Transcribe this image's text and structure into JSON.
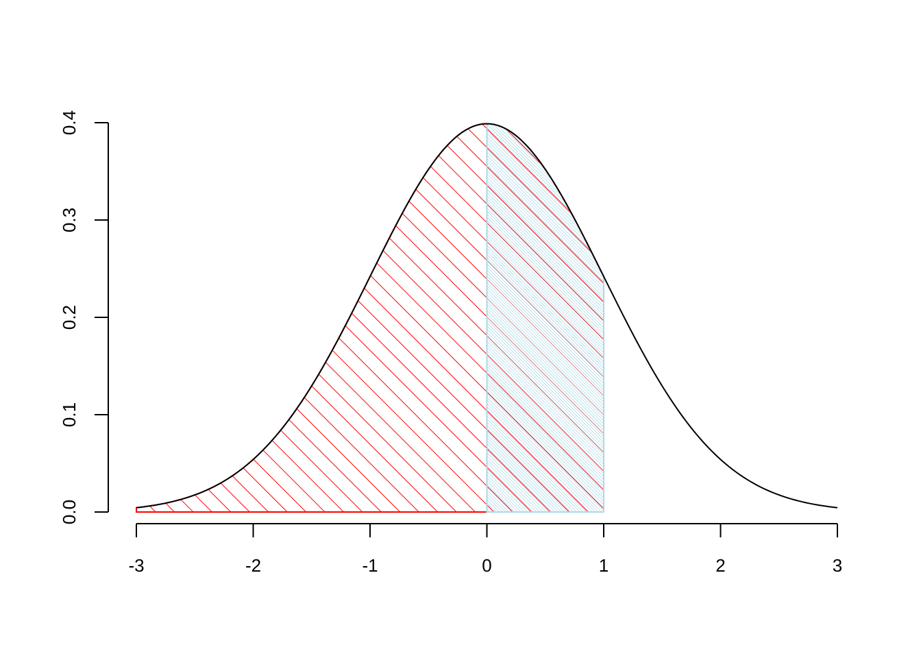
{
  "chart_data": {
    "type": "area",
    "title": "",
    "xlabel": "",
    "ylabel": "",
    "function": "standard normal density",
    "xlim": [
      -3,
      3
    ],
    "ylim": [
      0,
      0.4
    ],
    "x_ticks": [
      "-3",
      "-2",
      "-1",
      "0",
      "1",
      "2",
      "3"
    ],
    "y_ticks": [
      "0.0",
      "0.1",
      "0.2",
      "0.3",
      "0.4"
    ],
    "grid": false,
    "curve": {
      "from": -3,
      "to": 3,
      "color": "#000000"
    },
    "shaded_regions": [
      {
        "from": -3,
        "to": 1,
        "color": "#ff0000",
        "fill": "hatched 45deg, sparse"
      },
      {
        "from": 0,
        "to": 1,
        "color": "#add8e6",
        "fill": "hatched 45deg, dense"
      }
    ]
  }
}
